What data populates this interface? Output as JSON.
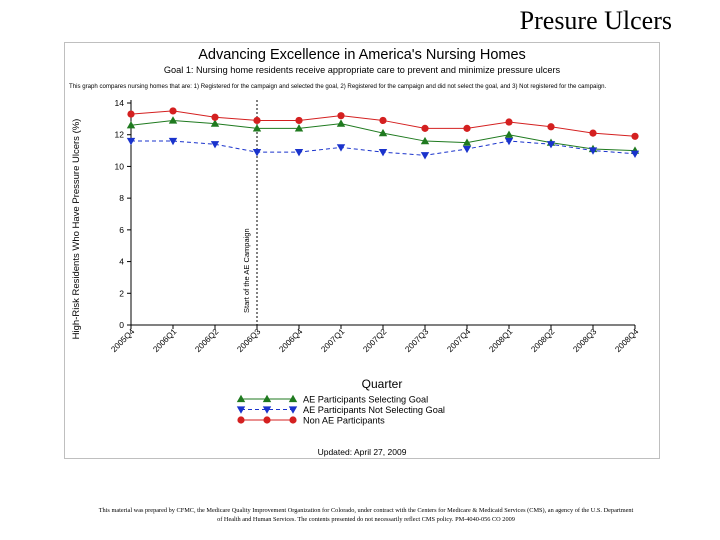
{
  "slide": {
    "title": "Presure Ulcers",
    "footer": "This material was prepared by CFMC, the Medicare Quality Improvement Organization for Colorado, under contract with the Centers for Medicare & Medicaid Services (CMS), an agency of the U.S. Department of Health and Human Services. The contents presented do not necessarily reflect CMS policy. PM-4040-056 CO 2009"
  },
  "chart_data": {
    "type": "line",
    "title": "Advancing Excellence in America's Nursing Homes",
    "subtitle": "Goal 1: Nursing home residents receive appropriate care to prevent and minimize pressure ulcers",
    "note": "This graph compares nursing homes that are: 1) Registered for the campaign and selected the goal, 2) Registered for the campaign and did not select the goal, and 3) Not registered for the campaign.",
    "xlabel": "Quarter",
    "ylabel": "High-Risk Residents Who Have Pressure Ulcers (%)",
    "categories": [
      "2005Q4",
      "2006Q1",
      "2006Q2",
      "2006Q3",
      "2006Q4",
      "2007Q1",
      "2007Q2",
      "2007Q3",
      "2007Q4",
      "2008Q1",
      "2008Q2",
      "2008Q3",
      "2008Q4"
    ],
    "ylim": [
      0,
      14
    ],
    "yticks": [
      0,
      2,
      4,
      6,
      8,
      10,
      12,
      14
    ],
    "series": [
      {
        "name": "AE Participants Selecting Goal",
        "color": "#1f7a1f",
        "marker": "triangle-up",
        "dash": "solid",
        "values": [
          12.6,
          12.9,
          12.7,
          12.4,
          12.4,
          12.7,
          12.1,
          11.6,
          11.5,
          12.0,
          11.5,
          11.1,
          11.0
        ]
      },
      {
        "name": "AE Participants Not Selecting Goal",
        "color": "#1a33cc",
        "marker": "triangle-down",
        "dash": "dashed",
        "values": [
          11.6,
          11.6,
          11.4,
          10.9,
          10.9,
          11.2,
          10.9,
          10.7,
          11.1,
          11.6,
          11.4,
          11.0,
          10.8
        ]
      },
      {
        "name": "Non AE Participants",
        "color": "#d42020",
        "marker": "circle",
        "dash": "solid",
        "values": [
          13.3,
          13.5,
          13.1,
          12.9,
          12.9,
          13.2,
          12.9,
          12.4,
          12.4,
          12.8,
          12.5,
          12.1,
          11.9
        ]
      }
    ],
    "annotation": {
      "label": "Start of the AE Campaign",
      "at_category": "2006Q3"
    },
    "legend_position": "bottom-center",
    "updated": "Updated: April 27, 2009"
  }
}
